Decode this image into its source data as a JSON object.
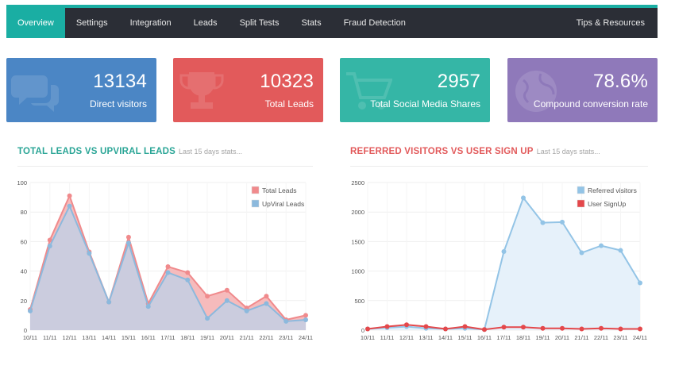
{
  "nav": {
    "tabs": [
      {
        "label": "Overview",
        "active": true
      },
      {
        "label": "Settings"
      },
      {
        "label": "Integration"
      },
      {
        "label": "Leads"
      },
      {
        "label": "Split Tests"
      },
      {
        "label": "Stats"
      },
      {
        "label": "Fraud Detection"
      }
    ],
    "right_label": "Tips & Resources"
  },
  "stats": [
    {
      "value": "13134",
      "label": "Direct visitors",
      "icon": "speech-bubbles-icon",
      "color": "#4b86c5"
    },
    {
      "value": "10323",
      "label": "Total Leads",
      "icon": "trophy-icon",
      "color": "#e25a5b"
    },
    {
      "value": "2957",
      "label": "Total Social Media Shares",
      "icon": "cart-icon",
      "color": "#35b6a6"
    },
    {
      "value": "78.6%",
      "label": "Compound conversion rate",
      "icon": "globe-icon",
      "color": "#8f79ba"
    }
  ],
  "sections": {
    "left": {
      "title": "TOTAL LEADS VS UPVIRAL LEADS",
      "subtitle": "Last 15 days stats..."
    },
    "right": {
      "title": "REFERRED VISITORS VS USER SIGN UP",
      "subtitle": "Last 15 days stats..."
    }
  },
  "chart_data": [
    {
      "type": "area",
      "x": [
        "10/11",
        "11/11",
        "12/11",
        "13/11",
        "14/11",
        "15/11",
        "16/11",
        "17/11",
        "18/11",
        "19/11",
        "20/11",
        "21/11",
        "22/11",
        "23/11",
        "24/11"
      ],
      "ylim": [
        0,
        100
      ],
      "yticks": [
        0,
        20,
        40,
        60,
        80,
        100
      ],
      "legend_position": "top-right",
      "grid": true,
      "series": [
        {
          "name": "Total Leads",
          "color": "#f08a8c",
          "fill": "#f6b7b8",
          "values": [
            14,
            61,
            91,
            53,
            19,
            63,
            18,
            43,
            39,
            23,
            27,
            15,
            23,
            7,
            10
          ]
        },
        {
          "name": "UpViral Leads",
          "color": "#8cb9dd",
          "fill": "#c8ccdf",
          "values": [
            13,
            57,
            84,
            52,
            19,
            59,
            16,
            39,
            34,
            8,
            20,
            13,
            18,
            6,
            7
          ]
        }
      ]
    },
    {
      "type": "area",
      "x": [
        "10/11",
        "11/11",
        "12/11",
        "13/11",
        "14/11",
        "15/11",
        "16/11",
        "17/11",
        "18/11",
        "19/11",
        "20/11",
        "21/11",
        "22/11",
        "23/11",
        "24/11"
      ],
      "ylim": [
        0,
        2500
      ],
      "yticks": [
        0,
        500,
        1000,
        1500,
        2000,
        2500
      ],
      "legend_position": "top-right",
      "grid": true,
      "series": [
        {
          "name": "Referred visitors",
          "color": "#93c4e6",
          "fill": "#e5f0fa",
          "values": [
            20,
            40,
            60,
            30,
            20,
            30,
            10,
            1330,
            2240,
            1820,
            1830,
            1310,
            1430,
            1350,
            800
          ]
        },
        {
          "name": "User SignUp",
          "color": "#e4484b",
          "fill": "none",
          "values": [
            20,
            60,
            90,
            60,
            20,
            60,
            10,
            50,
            50,
            30,
            30,
            20,
            30,
            20,
            20
          ]
        }
      ]
    }
  ]
}
